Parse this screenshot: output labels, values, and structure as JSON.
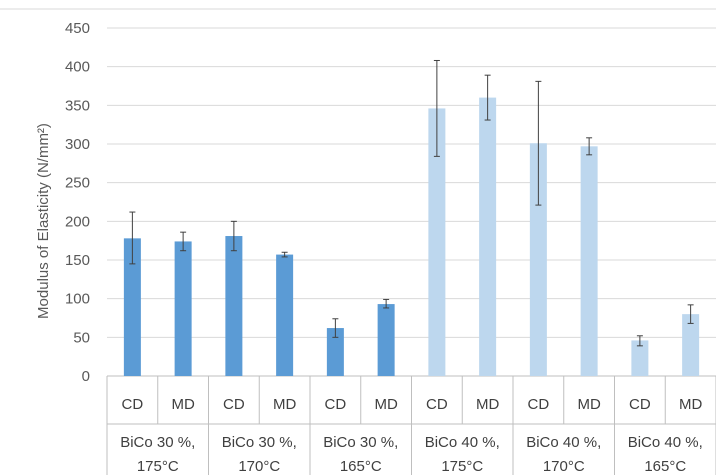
{
  "chart_data": {
    "type": "bar",
    "title": "",
    "ylabel": "Modulus of Elasticity (N/mm²)",
    "xlabel": "",
    "ylim": [
      0,
      450
    ],
    "yticks": [
      0,
      50,
      100,
      150,
      200,
      250,
      300,
      350,
      400,
      450
    ],
    "grid": true,
    "legend": "none",
    "groups": [
      {
        "label_line1": "BiCo 30 %,",
        "label_line2": "175°C",
        "color": "#5b9bd5",
        "bars": [
          {
            "label": "CD",
            "value": 178,
            "err_low": 145,
            "err_high": 212
          },
          {
            "label": "MD",
            "value": 174,
            "err_low": 162,
            "err_high": 186
          }
        ]
      },
      {
        "label_line1": "BiCo 30 %,",
        "label_line2": "170°C",
        "color": "#5b9bd5",
        "bars": [
          {
            "label": "CD",
            "value": 181,
            "err_low": 162,
            "err_high": 200
          },
          {
            "label": "MD",
            "value": 157,
            "err_low": 154,
            "err_high": 160
          }
        ]
      },
      {
        "label_line1": "BiCo 30 %,",
        "label_line2": "165°C",
        "color": "#5b9bd5",
        "bars": [
          {
            "label": "CD",
            "value": 62,
            "err_low": 50,
            "err_high": 74
          },
          {
            "label": "MD",
            "value": 93,
            "err_low": 88,
            "err_high": 99
          }
        ]
      },
      {
        "label_line1": "BiCo 40 %,",
        "label_line2": "175°C",
        "color": "#bdd7ee",
        "bars": [
          {
            "label": "CD",
            "value": 346,
            "err_low": 284,
            "err_high": 408
          },
          {
            "label": "MD",
            "value": 360,
            "err_low": 331,
            "err_high": 389
          }
        ]
      },
      {
        "label_line1": "BiCo 40 %,",
        "label_line2": "170°C",
        "color": "#bdd7ee",
        "bars": [
          {
            "label": "CD",
            "value": 301,
            "err_low": 221,
            "err_high": 381
          },
          {
            "label": "MD",
            "value": 297,
            "err_low": 286,
            "err_high": 308
          }
        ]
      },
      {
        "label_line1": "BiCo 40 %,",
        "label_line2": "165°C",
        "color": "#bdd7ee",
        "bars": [
          {
            "label": "CD",
            "value": 46,
            "err_low": 39,
            "err_high": 52
          },
          {
            "label": "MD",
            "value": 80,
            "err_low": 68,
            "err_high": 92
          }
        ]
      }
    ]
  }
}
